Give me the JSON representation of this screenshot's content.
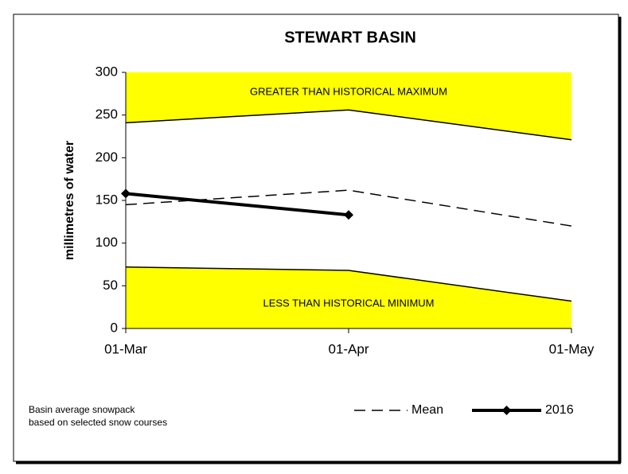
{
  "chart_data": {
    "type": "line",
    "title": "STEWART BASIN",
    "y_label": "millimetres of water",
    "categories": [
      "01-Mar",
      "01-Apr",
      "01-May"
    ],
    "ylim": [
      0,
      300
    ],
    "yticks": [
      0,
      50,
      100,
      150,
      200,
      250,
      300
    ],
    "historical_max": {
      "values": [
        241,
        256,
        221
      ],
      "annotation": "GREATER THAN HISTORICAL MAXIMUM",
      "color": "#000000",
      "fill": "#ffff00"
    },
    "historical_min": {
      "values": [
        72,
        68,
        32
      ],
      "annotation": "LESS THAN HISTORICAL MINIMUM",
      "color": "#000000",
      "fill": "#ffff00"
    },
    "series": [
      {
        "name": "Mean",
        "color": "#000000",
        "dashed": true,
        "values": [
          145,
          162,
          120
        ]
      },
      {
        "name": "2016",
        "color": "#000000",
        "marker": "diamond",
        "values": [
          158,
          133,
          null
        ]
      }
    ],
    "footnote": [
      "Basin average snowpack",
      "based on selected snow courses"
    ]
  }
}
